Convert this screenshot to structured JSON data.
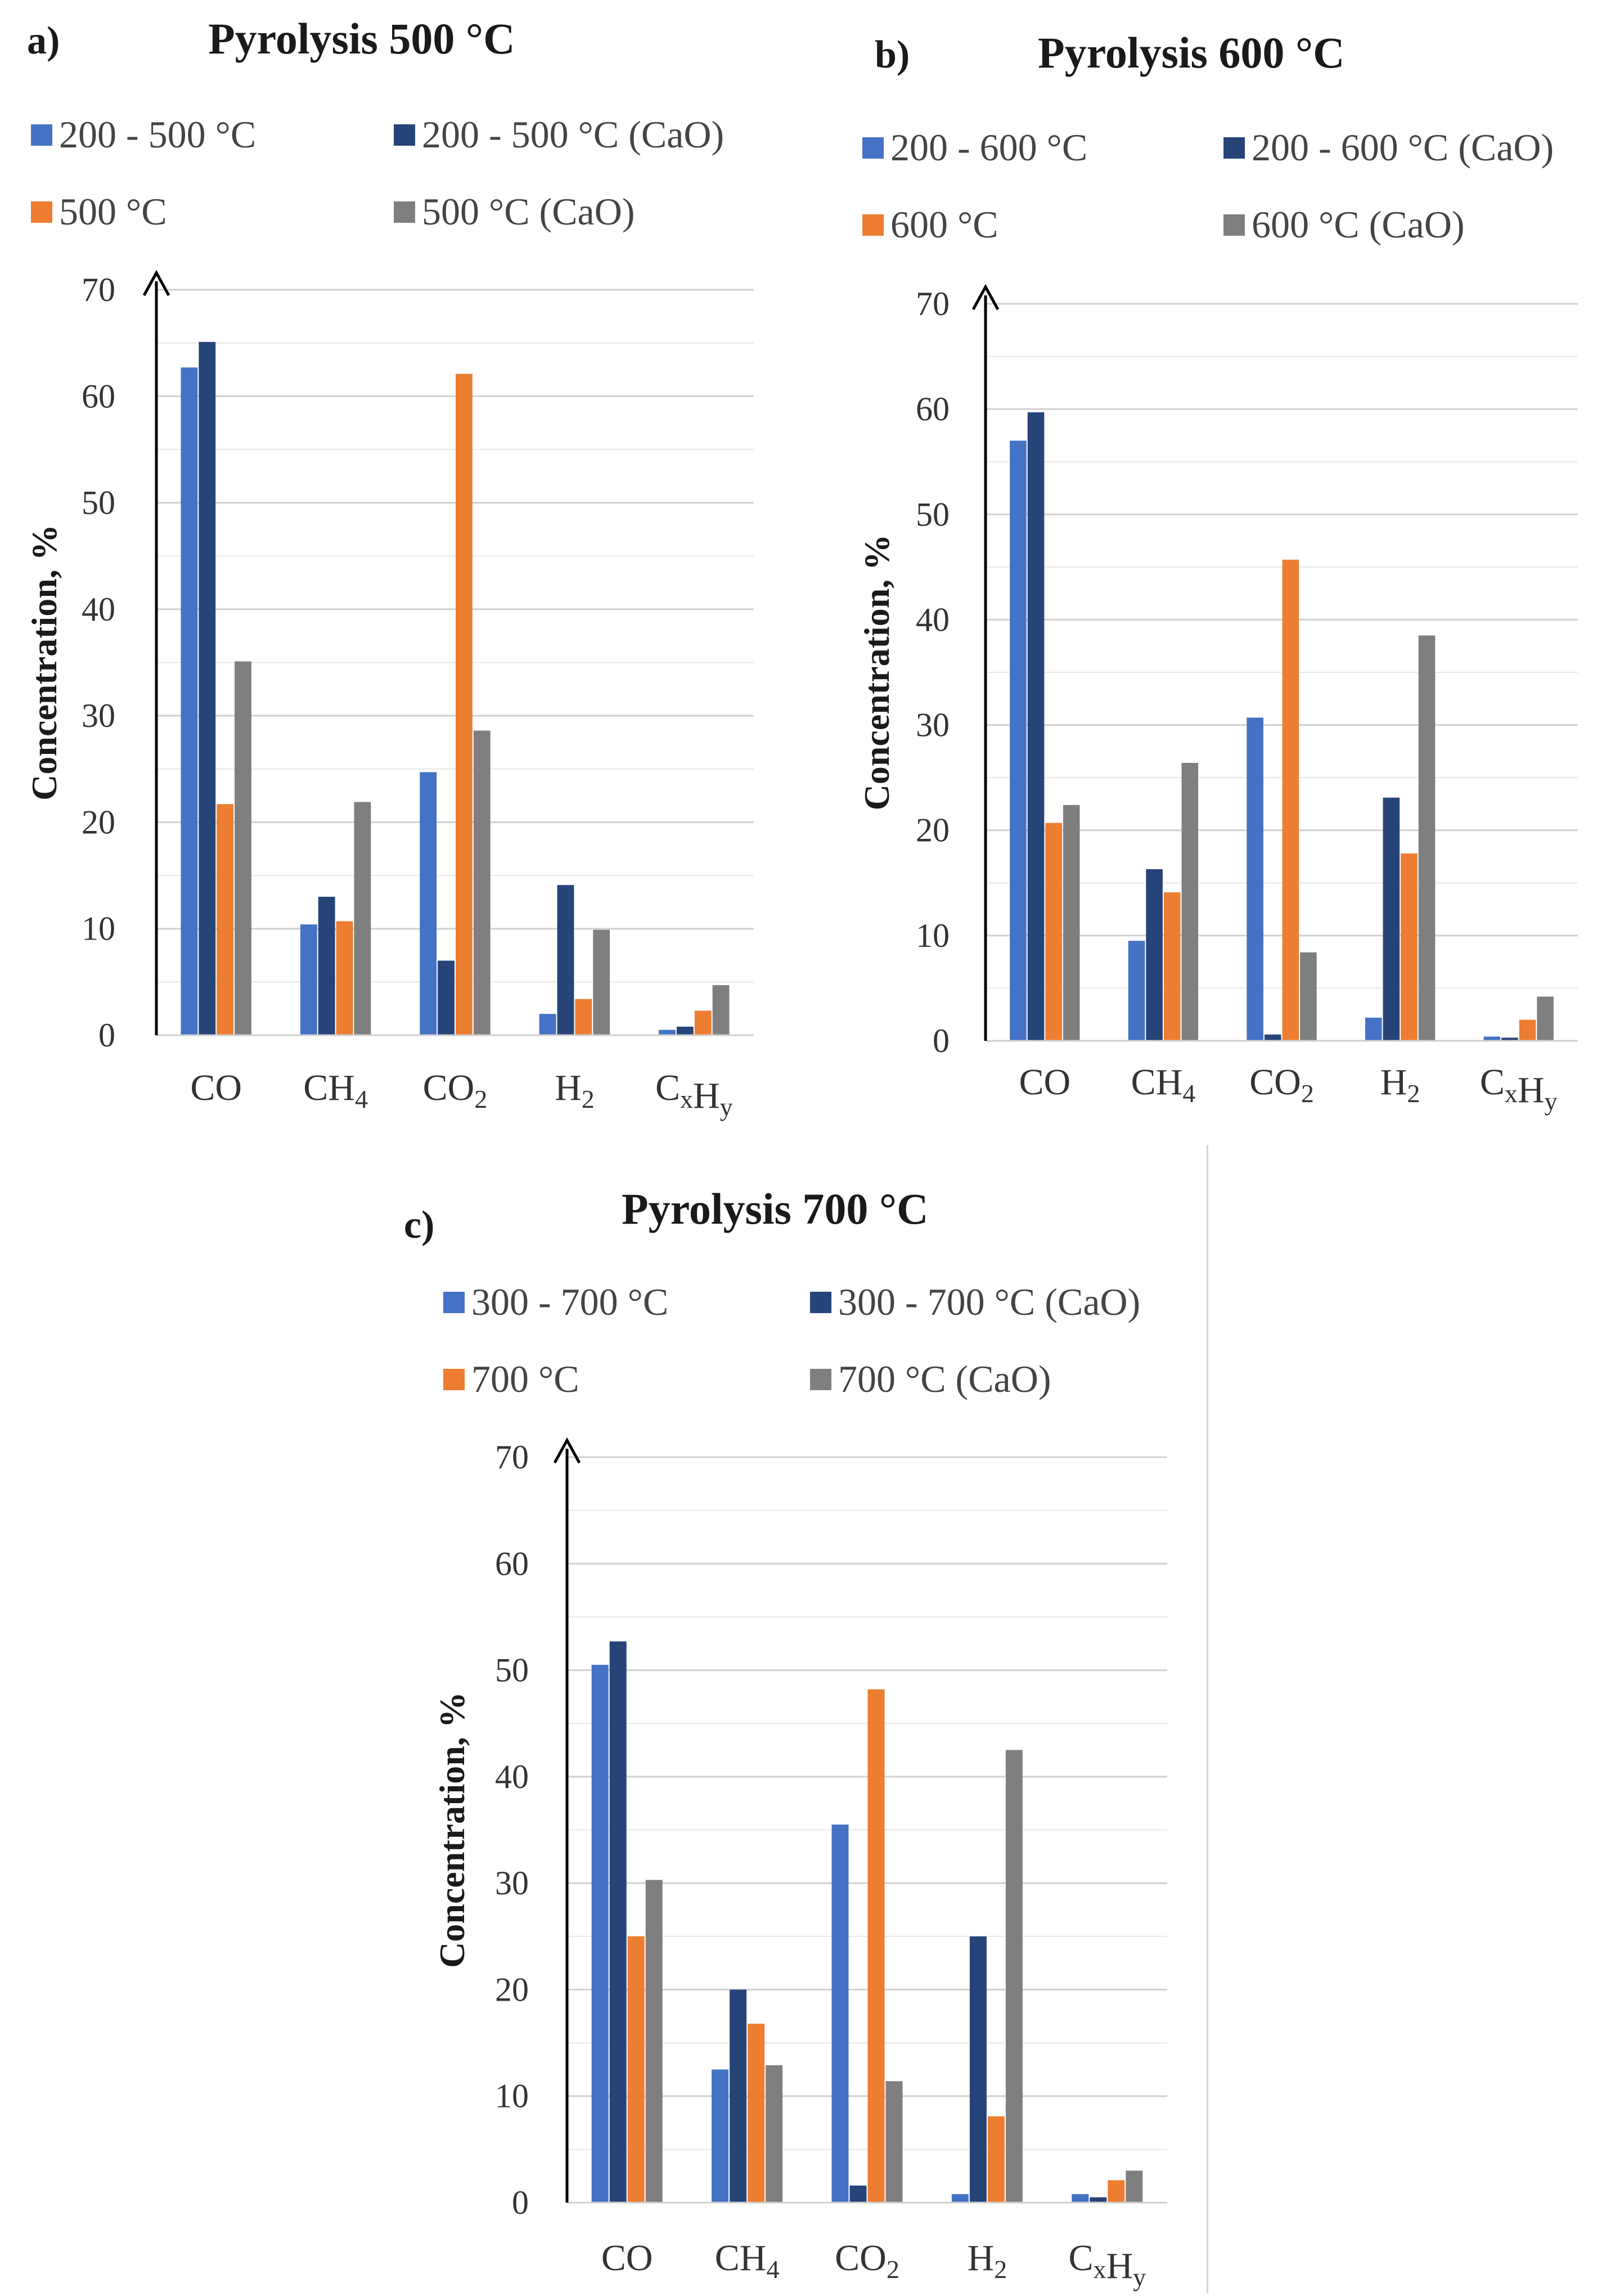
{
  "chart_data": [
    {
      "type": "bar",
      "panel_label": "a)",
      "title": "Pyrolysis 500 °C",
      "ylabel": "Concentration, %",
      "xlabel": "",
      "ylim": [
        0,
        70
      ],
      "yticks": [
        0,
        10,
        20,
        30,
        40,
        50,
        60,
        70
      ],
      "categories": [
        {
          "main": "CO",
          "sub": ""
        },
        {
          "main": "CH",
          "sub": "4"
        },
        {
          "main": "CO",
          "sub": "2"
        },
        {
          "main": "H",
          "sub": "2"
        },
        {
          "main": "C",
          "sub": "x",
          "main2": "H",
          "sub2": "y"
        }
      ],
      "series": [
        {
          "name": "200 - 500 °C",
          "color": "#4472c4",
          "values": [
            62.7,
            10.4,
            24.7,
            2.0,
            0.5
          ]
        },
        {
          "name": "200 - 500 °C (CaO)",
          "color": "#264478",
          "values": [
            65.1,
            13.0,
            7.0,
            14.1,
            0.8
          ]
        },
        {
          "name": "500 °C",
          "color": "#ed7d31",
          "values": [
            21.7,
            10.7,
            62.1,
            3.4,
            2.3
          ]
        },
        {
          "name": "500  °C (CaO)",
          "color": "#7f7f7f",
          "values": [
            35.1,
            21.9,
            28.6,
            9.9,
            4.7
          ]
        }
      ]
    },
    {
      "type": "bar",
      "panel_label": "b)",
      "title": "Pyrolysis 600 °C",
      "ylabel": "Concentration, %",
      "xlabel": "",
      "ylim": [
        0,
        70
      ],
      "yticks": [
        0,
        10,
        20,
        30,
        40,
        50,
        60,
        70
      ],
      "categories": [
        {
          "main": "CO",
          "sub": ""
        },
        {
          "main": "CH",
          "sub": "4"
        },
        {
          "main": "CO",
          "sub": "2"
        },
        {
          "main": "H",
          "sub": "2"
        },
        {
          "main": "C",
          "sub": "x",
          "main2": "H",
          "sub2": "y"
        }
      ],
      "series": [
        {
          "name": "200 - 600 °C",
          "color": "#4472c4",
          "values": [
            57.0,
            9.5,
            30.7,
            2.2,
            0.4
          ]
        },
        {
          "name": "200 - 600 °C (CaO)",
          "color": "#264478",
          "values": [
            59.7,
            16.3,
            0.6,
            23.1,
            0.3
          ]
        },
        {
          "name": "600 °C",
          "color": "#ed7d31",
          "values": [
            20.7,
            14.1,
            45.7,
            17.8,
            2.0
          ]
        },
        {
          "name": "600  °C (CaO)",
          "color": "#7f7f7f",
          "values": [
            22.4,
            26.4,
            8.4,
            38.5,
            4.2
          ]
        }
      ]
    },
    {
      "type": "bar",
      "panel_label": "c)",
      "title": "Pyrolysis 700 °C",
      "ylabel": "Concentration, %",
      "xlabel": "",
      "ylim": [
        0,
        70
      ],
      "yticks": [
        0,
        10,
        20,
        30,
        40,
        50,
        60,
        70
      ],
      "categories": [
        {
          "main": "CO",
          "sub": ""
        },
        {
          "main": "CH",
          "sub": "4"
        },
        {
          "main": "CO",
          "sub": "2"
        },
        {
          "main": "H",
          "sub": "2"
        },
        {
          "main": "C",
          "sub": "x",
          "main2": "H",
          "sub2": "y"
        }
      ],
      "series": [
        {
          "name": "300 - 700 °C",
          "color": "#4472c4",
          "values": [
            50.5,
            12.5,
            35.5,
            0.8,
            0.8
          ]
        },
        {
          "name": "300 - 700 °C (CaO)",
          "color": "#264478",
          "values": [
            52.7,
            20.0,
            1.6,
            25.0,
            0.5
          ]
        },
        {
          "name": "700 °C",
          "color": "#ed7d31",
          "values": [
            25.0,
            16.8,
            48.2,
            8.1,
            2.1
          ]
        },
        {
          "name": "700 °C (CaO)",
          "color": "#7f7f7f",
          "values": [
            30.3,
            12.9,
            11.4,
            42.5,
            3.0
          ]
        }
      ]
    }
  ]
}
